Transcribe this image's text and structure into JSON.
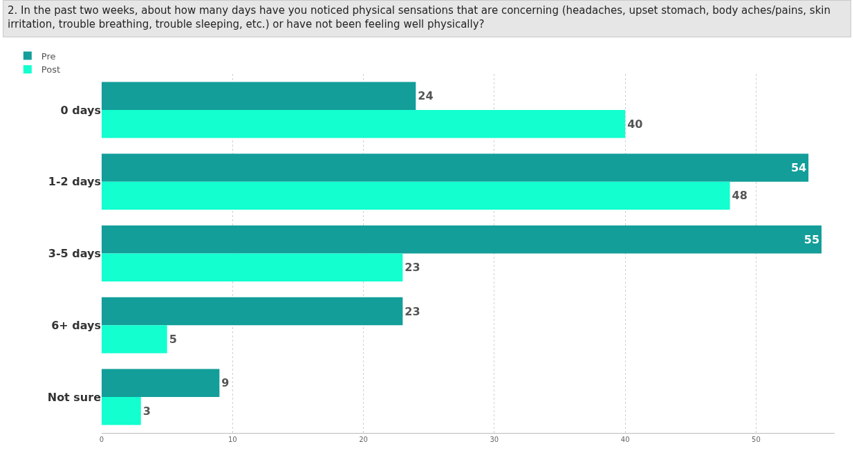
{
  "chart_data": {
    "type": "bar",
    "orientation": "horizontal",
    "title": "2. In the past two weeks, about how many days have you noticed physical sensations that are concerning (headaches, upset stomach, body aches/pains, skin irritation, trouble breathing, trouble sleeping, etc.) or have not been feeling well physically?",
    "categories": [
      "0 days",
      "1-2 days",
      "3-5 days",
      "6+ days",
      "Not sure"
    ],
    "series": [
      {
        "name": "Pre",
        "color": "#139e9a",
        "values": [
          24,
          54,
          55,
          23,
          9
        ]
      },
      {
        "name": "Post",
        "color": "#13ffd0",
        "values": [
          40,
          48,
          23,
          5,
          3
        ]
      }
    ],
    "xlim": [
      0,
      56
    ],
    "xticks": [
      0,
      10,
      20,
      30,
      40,
      50
    ],
    "grid": "x",
    "legend": "top left",
    "data_labels": true
  }
}
